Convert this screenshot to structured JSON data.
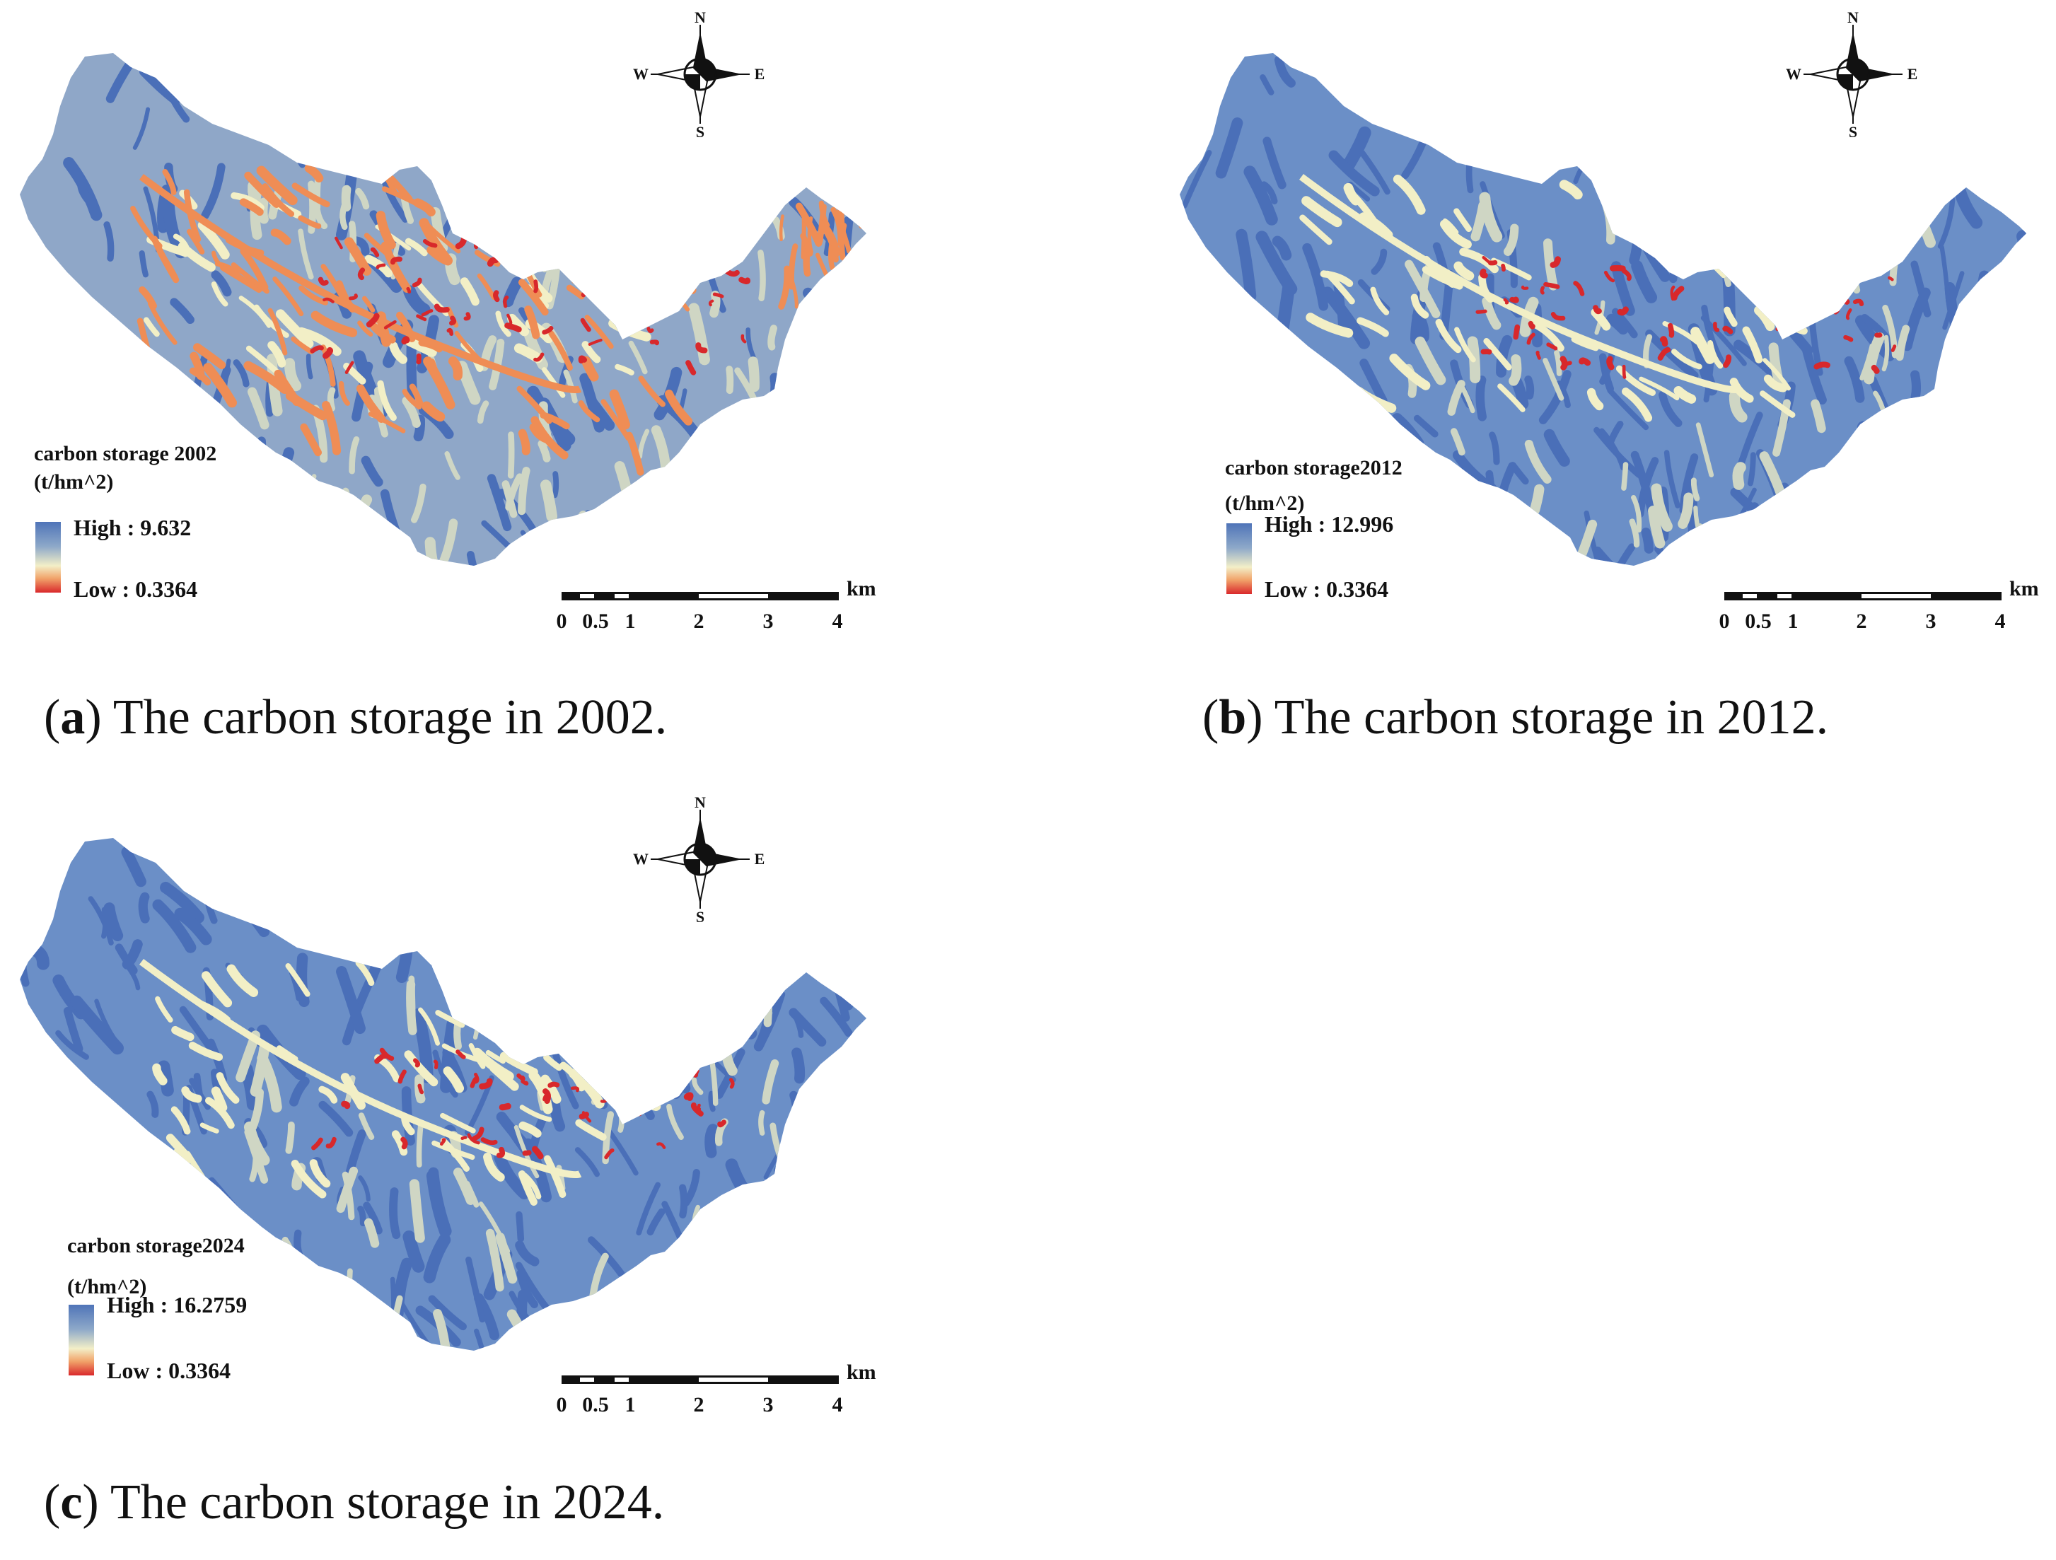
{
  "colors": {
    "base": "#6b8fc7",
    "dark_blue": "#4a6fb8",
    "mid_blue": "#8fa7c8",
    "pale": "#cfd6c4",
    "cream": "#f2efc6",
    "orange": "#ef8d55",
    "red": "#d8282b"
  },
  "compass": {
    "n": "N",
    "s": "S",
    "e": "E",
    "w": "W"
  },
  "scale": {
    "ticks": [
      "0",
      "0.5",
      "1",
      "2",
      "3",
      "4"
    ],
    "unit": "km"
  },
  "panels": [
    {
      "legend_title": "carbon storage 2002",
      "legend_unit": "(t/hm^2)",
      "high": "High : 9.632",
      "low": "Low : 0.3364",
      "caption_letter": "a",
      "caption_text": "The carbon storage in 2002.",
      "degradation": "high"
    },
    {
      "legend_title": "carbon storage2012",
      "legend_unit": "(t/hm^2)",
      "high": "High : 12.996",
      "low": "Low : 0.3364",
      "caption_letter": "b",
      "caption_text": "The carbon storage in 2012.",
      "degradation": "medium"
    },
    {
      "legend_title": "carbon storage2024",
      "legend_unit": "(t/hm^2)",
      "high": "High : 16.2759",
      "low": "Low : 0.3364",
      "caption_letter": "c",
      "caption_text": "The carbon storage in 2024.",
      "degradation": "low"
    }
  ]
}
